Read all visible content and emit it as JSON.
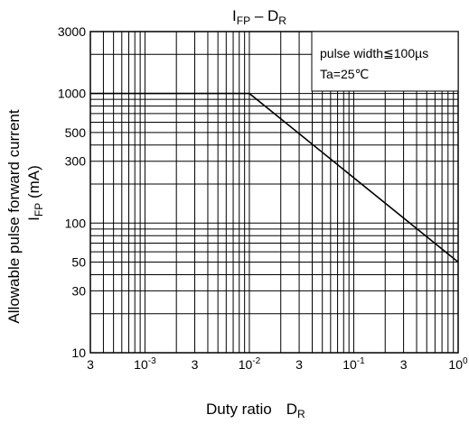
{
  "chart_data": {
    "type": "line",
    "title": {
      "main": "I",
      "main_sub": "FP",
      "sep": " – D",
      "sep_sub": "R"
    },
    "xlabel": {
      "text": "Duty ratio",
      "sym": "D",
      "sym_sub": "R"
    },
    "ylabel": {
      "line1": "Allowable pulse forward current",
      "line2": "I",
      "line2_sub": "FP",
      "line2_rest": " (mA)"
    },
    "x_scale": "log",
    "y_scale": "log",
    "xlim": [
      0.0003,
      1
    ],
    "ylim": [
      10,
      3000
    ],
    "grid": true,
    "x_ticks": [
      {
        "value": 0.0003,
        "label": "3"
      },
      {
        "value": 0.001,
        "base": "10",
        "exp": "-3"
      },
      {
        "value": 0.003,
        "label": "3"
      },
      {
        "value": 0.01,
        "base": "10",
        "exp": "-2"
      },
      {
        "value": 0.03,
        "label": "3"
      },
      {
        "value": 0.1,
        "base": "10",
        "exp": "-1"
      },
      {
        "value": 0.3,
        "label": "3"
      },
      {
        "value": 1,
        "base": "10",
        "exp": "0"
      }
    ],
    "y_ticks": [
      {
        "value": 10,
        "label": "10"
      },
      {
        "value": 30,
        "label": "30"
      },
      {
        "value": 50,
        "label": "50"
      },
      {
        "value": 100,
        "label": "100"
      },
      {
        "value": 300,
        "label": "300"
      },
      {
        "value": 500,
        "label": "500"
      },
      {
        "value": 1000,
        "label": "1000"
      },
      {
        "value": 3000,
        "label": "3000"
      }
    ],
    "series": [
      {
        "x": [
          0.0003,
          0.01,
          1
        ],
        "y": [
          1000,
          1000,
          50
        ]
      }
    ],
    "annotation": {
      "line1": "pulse width≦100µs",
      "line2": "Ta=25℃",
      "placement": "top-right"
    }
  }
}
